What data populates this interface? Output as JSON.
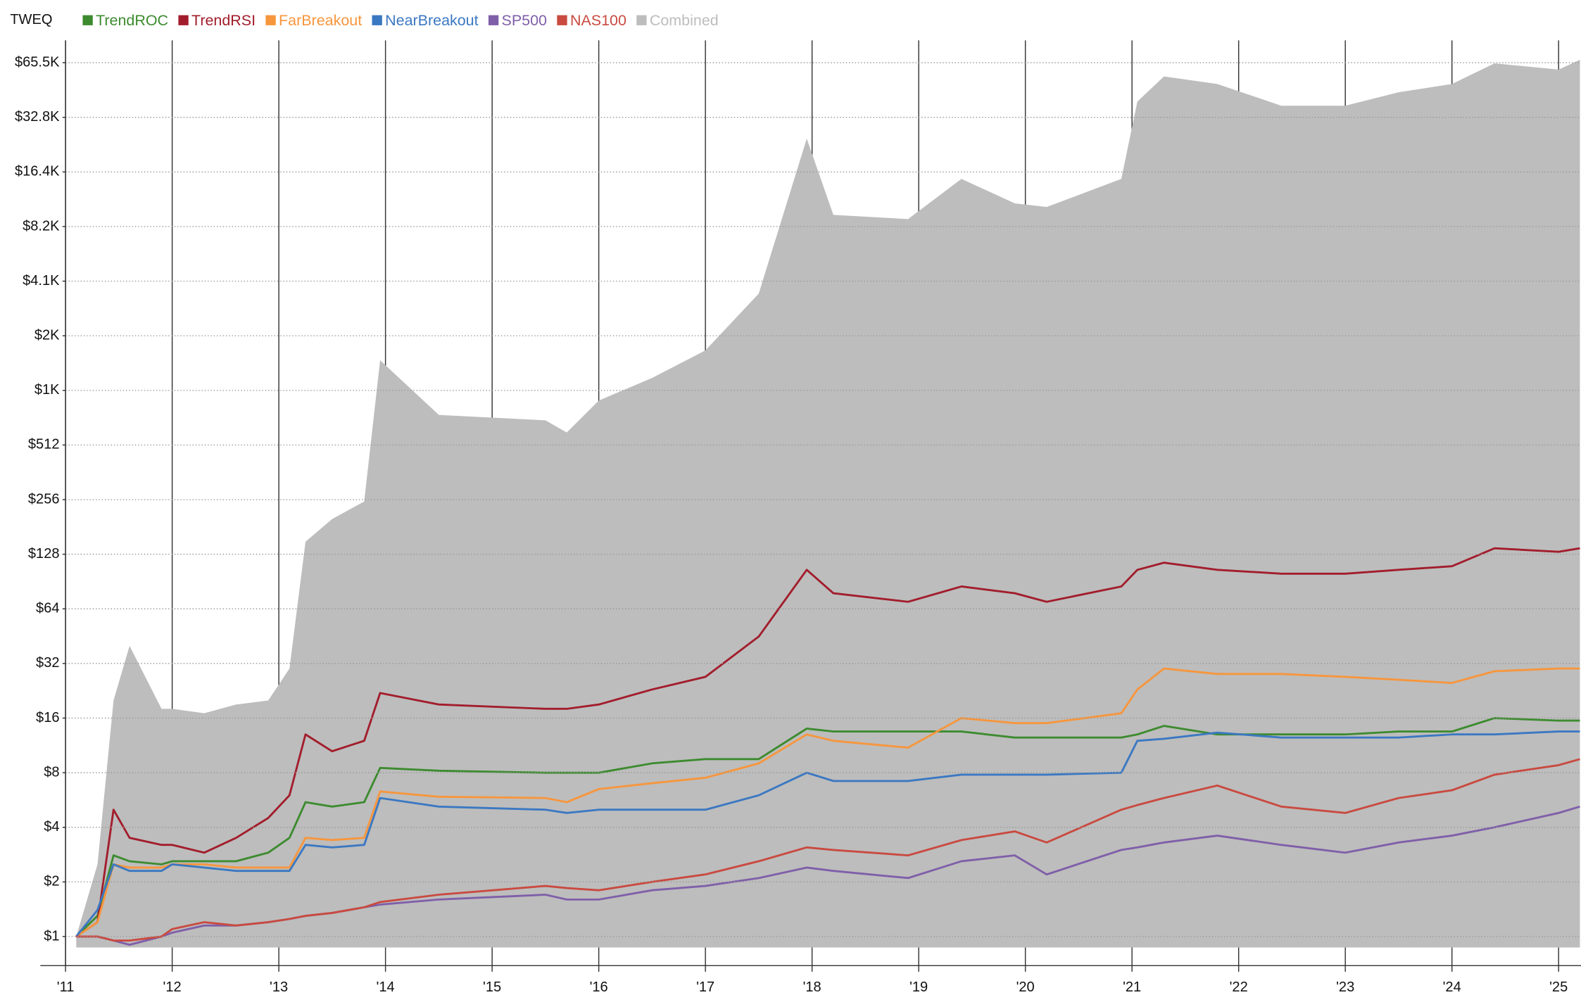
{
  "chart_data": {
    "type": "line",
    "legend_title": "TWEQ",
    "log_scale": true,
    "log_base": 2,
    "grid": true,
    "legend": "top-left",
    "xlim": [
      2011,
      2025.21
    ],
    "ylim": [
      0.87,
      87000
    ],
    "xticks": [
      {
        "value": 2011,
        "label": "'11"
      },
      {
        "value": 2012,
        "label": "'12"
      },
      {
        "value": 2013,
        "label": "'13"
      },
      {
        "value": 2014,
        "label": "'14"
      },
      {
        "value": 2015,
        "label": "'15"
      },
      {
        "value": 2016,
        "label": "'16"
      },
      {
        "value": 2017,
        "label": "'17"
      },
      {
        "value": 2018,
        "label": "'18"
      },
      {
        "value": 2019,
        "label": "'19"
      },
      {
        "value": 2020,
        "label": "'20"
      },
      {
        "value": 2021,
        "label": "'21"
      },
      {
        "value": 2022,
        "label": "'22"
      },
      {
        "value": 2023,
        "label": "'23"
      },
      {
        "value": 2024,
        "label": "'24"
      },
      {
        "value": 2025,
        "label": "'25"
      }
    ],
    "yticks": [
      {
        "value": 1,
        "label": "$1"
      },
      {
        "value": 2,
        "label": "$2"
      },
      {
        "value": 4,
        "label": "$4"
      },
      {
        "value": 8,
        "label": "$8"
      },
      {
        "value": 16,
        "label": "$16"
      },
      {
        "value": 32,
        "label": "$32"
      },
      {
        "value": 64,
        "label": "$64"
      },
      {
        "value": 128,
        "label": "$128"
      },
      {
        "value": 256,
        "label": "$256"
      },
      {
        "value": 512,
        "label": "$512"
      },
      {
        "value": 1024,
        "label": "$1K"
      },
      {
        "value": 2048,
        "label": "$2K"
      },
      {
        "value": 4096,
        "label": "$4.1K"
      },
      {
        "value": 8192,
        "label": "$8.2K"
      },
      {
        "value": 16384,
        "label": "$16.4K"
      },
      {
        "value": 32768,
        "label": "$32.8K"
      },
      {
        "value": 65536,
        "label": "$65.5K"
      }
    ],
    "x": [
      2011.1,
      2011.3,
      2011.45,
      2011.6,
      2011.9,
      2012.0,
      2012.3,
      2012.6,
      2012.9,
      2013.1,
      2013.25,
      2013.5,
      2013.8,
      2013.95,
      2014.5,
      2015.5,
      2015.7,
      2016.0,
      2016.5,
      2017.0,
      2017.5,
      2017.95,
      2018.2,
      2018.9,
      2019.4,
      2019.9,
      2020.2,
      2020.9,
      2021.05,
      2021.3,
      2021.8,
      2022.4,
      2023.0,
      2023.5,
      2024.0,
      2024.4,
      2025.0,
      2025.2
    ],
    "series": [
      {
        "name": "Combined",
        "color": "#bdbdbd",
        "area": true,
        "values": [
          1,
          2.5,
          20,
          40,
          18,
          18,
          17,
          19,
          20,
          30,
          150,
          200,
          250,
          1500,
          750,
          700,
          600,
          900,
          1200,
          1700,
          3500,
          25000,
          9500,
          9000,
          15000,
          11000,
          10500,
          15000,
          40000,
          55000,
          50000,
          38000,
          38000,
          45000,
          50000,
          65000,
          60000,
          68000
        ]
      },
      {
        "name": "TrendROC",
        "color": "#3d8b2f",
        "values": [
          1,
          1.3,
          2.8,
          2.6,
          2.5,
          2.6,
          2.6,
          2.6,
          2.9,
          3.5,
          5.5,
          5.2,
          5.5,
          8.5,
          8.2,
          8,
          8,
          8,
          9,
          9.5,
          9.5,
          14,
          13.5,
          13.5,
          13.5,
          12.5,
          12.5,
          12.5,
          13,
          14.5,
          13,
          13,
          13,
          13.5,
          13.5,
          16,
          15.5,
          15.5
        ]
      },
      {
        "name": "TrendRSI",
        "color": "#a21d2c",
        "values": [
          1,
          1.2,
          5,
          3.5,
          3.2,
          3.2,
          2.9,
          3.5,
          4.5,
          6,
          13,
          10.5,
          12,
          22,
          19,
          18,
          18,
          19,
          23,
          27,
          45,
          105,
          78,
          70,
          85,
          78,
          70,
          85,
          105,
          115,
          105,
          100,
          100,
          105,
          110,
          138,
          132,
          138
        ]
      },
      {
        "name": "FarBreakout",
        "color": "#f7963d",
        "values": [
          1,
          1.2,
          2.5,
          2.4,
          2.4,
          2.5,
          2.5,
          2.4,
          2.4,
          2.4,
          3.5,
          3.4,
          3.5,
          6.3,
          5.9,
          5.8,
          5.5,
          6.5,
          7,
          7.5,
          9,
          13,
          12,
          11,
          16,
          15,
          15,
          17,
          23,
          30,
          28,
          28,
          27,
          26,
          25,
          29,
          30,
          30
        ]
      },
      {
        "name": "NearBreakout",
        "color": "#3b78c2",
        "values": [
          1,
          1.4,
          2.5,
          2.3,
          2.3,
          2.5,
          2.4,
          2.3,
          2.3,
          2.3,
          3.2,
          3.1,
          3.2,
          5.8,
          5.2,
          5,
          4.8,
          5,
          5,
          5,
          6,
          8,
          7.2,
          7.2,
          7.8,
          7.8,
          7.8,
          8,
          12,
          12.3,
          13.3,
          12.5,
          12.5,
          12.5,
          13,
          13,
          13.5,
          13.5
        ]
      },
      {
        "name": "SP500",
        "color": "#7f5fa9",
        "values": [
          1,
          1,
          0.95,
          0.9,
          1.0,
          1.05,
          1.15,
          1.15,
          1.2,
          1.25,
          1.3,
          1.35,
          1.45,
          1.5,
          1.6,
          1.7,
          1.6,
          1.6,
          1.8,
          1.9,
          2.1,
          2.4,
          2.3,
          2.1,
          2.6,
          2.8,
          2.2,
          3.0,
          3.1,
          3.3,
          3.6,
          3.2,
          2.9,
          3.3,
          3.6,
          4.0,
          4.8,
          5.2
        ]
      },
      {
        "name": "NAS100",
        "color": "#c94a40",
        "values": [
          1,
          1,
          0.95,
          0.95,
          1.0,
          1.1,
          1.2,
          1.15,
          1.2,
          1.25,
          1.3,
          1.35,
          1.45,
          1.55,
          1.7,
          1.9,
          1.85,
          1.8,
          2.0,
          2.2,
          2.6,
          3.1,
          3.0,
          2.8,
          3.4,
          3.8,
          3.3,
          5.0,
          5.3,
          5.8,
          6.8,
          5.2,
          4.8,
          5.8,
          6.4,
          7.8,
          8.8,
          9.5
        ]
      }
    ]
  }
}
